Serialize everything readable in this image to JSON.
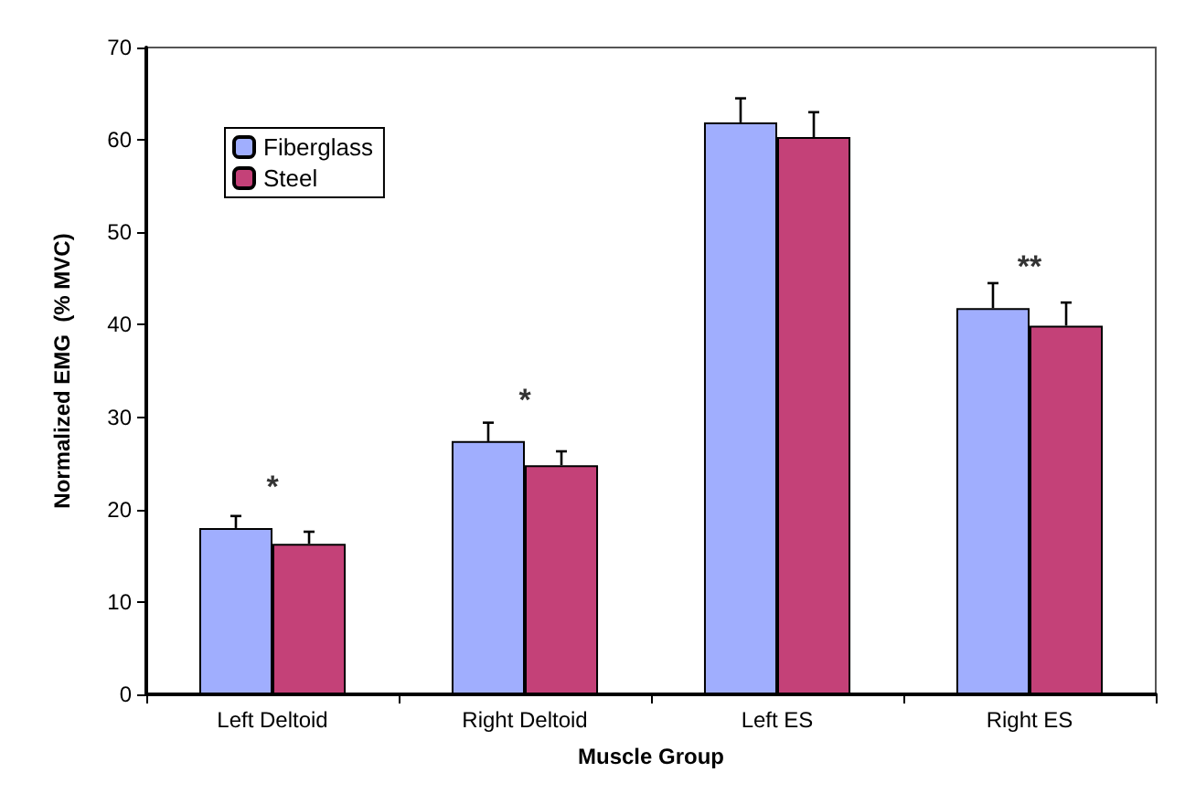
{
  "chart_data": {
    "type": "bar",
    "xlabel": "Muscle Group",
    "ylabel": "Normalized EMG  (% MVC)",
    "categories": [
      "Left Deltoid",
      "Right Deltoid",
      "Left ES",
      "Right ES"
    ],
    "series": [
      {
        "name": "Fiberglass",
        "color": "#a0aefe",
        "values": [
          18.0,
          27.4,
          61.9,
          41.8
        ],
        "errors": [
          [
            18.0,
            19.3
          ],
          [
            27.4,
            29.4
          ],
          [
            61.9,
            64.5
          ],
          [
            41.8,
            44.5
          ]
        ]
      },
      {
        "name": "Steel",
        "color": "#c44178",
        "values": [
          16.3,
          24.8,
          60.3,
          39.9
        ],
        "errors": [
          [
            16.3,
            17.6
          ],
          [
            24.8,
            26.3
          ],
          [
            60.3,
            63.0
          ],
          [
            39.9,
            42.4
          ]
        ]
      }
    ],
    "ylim": [
      0,
      70
    ],
    "yticks": [
      0,
      10,
      20,
      30,
      40,
      50,
      60,
      70
    ],
    "grid": false,
    "legend": "top left",
    "annotations": [
      {
        "text": "*",
        "x": "Left Deltoid",
        "y": 18.0
      },
      {
        "text": "*",
        "x": "Right Deltoid",
        "y": 27.4
      },
      {
        "text": "**",
        "x": "Right ES",
        "y": 41.8
      }
    ]
  }
}
